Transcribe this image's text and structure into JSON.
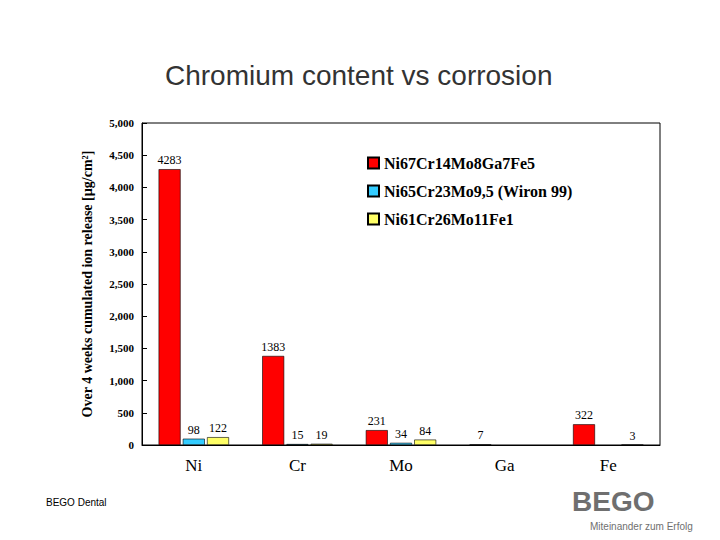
{
  "chart_data": {
    "type": "bar",
    "title": "Chromium content vs corrosion",
    "y_label": "Over 4 weeks cumulated ion release [µg/cm²]",
    "categories": [
      "Ni",
      "Cr",
      "Mo",
      "Ga",
      "Fe"
    ],
    "series": [
      {
        "name": "Ni67Cr14Mo8Ga7Fe5",
        "color": "#ff0000",
        "values": [
          4283,
          1383,
          231,
          7,
          322
        ]
      },
      {
        "name": "Ni65Cr23Mo9,5 (Wiron 99)",
        "color": "#33ccff",
        "values": [
          98,
          15,
          34,
          null,
          null
        ]
      },
      {
        "name": "Ni61Cr26Mo11Fe1",
        "color": "#ffff66",
        "values": [
          122,
          19,
          84,
          null,
          3
        ]
      }
    ],
    "ylim": [
      0,
      5000
    ],
    "yticks": [
      0,
      500,
      1000,
      1500,
      2000,
      2500,
      3000,
      3500,
      4000,
      4500,
      5000
    ],
    "grid": false,
    "legend": "top-right",
    "data_labels": true,
    "annotations": [
      "BEGO Dental",
      "BEGO",
      "Miteinander zum Erfolg"
    ]
  }
}
